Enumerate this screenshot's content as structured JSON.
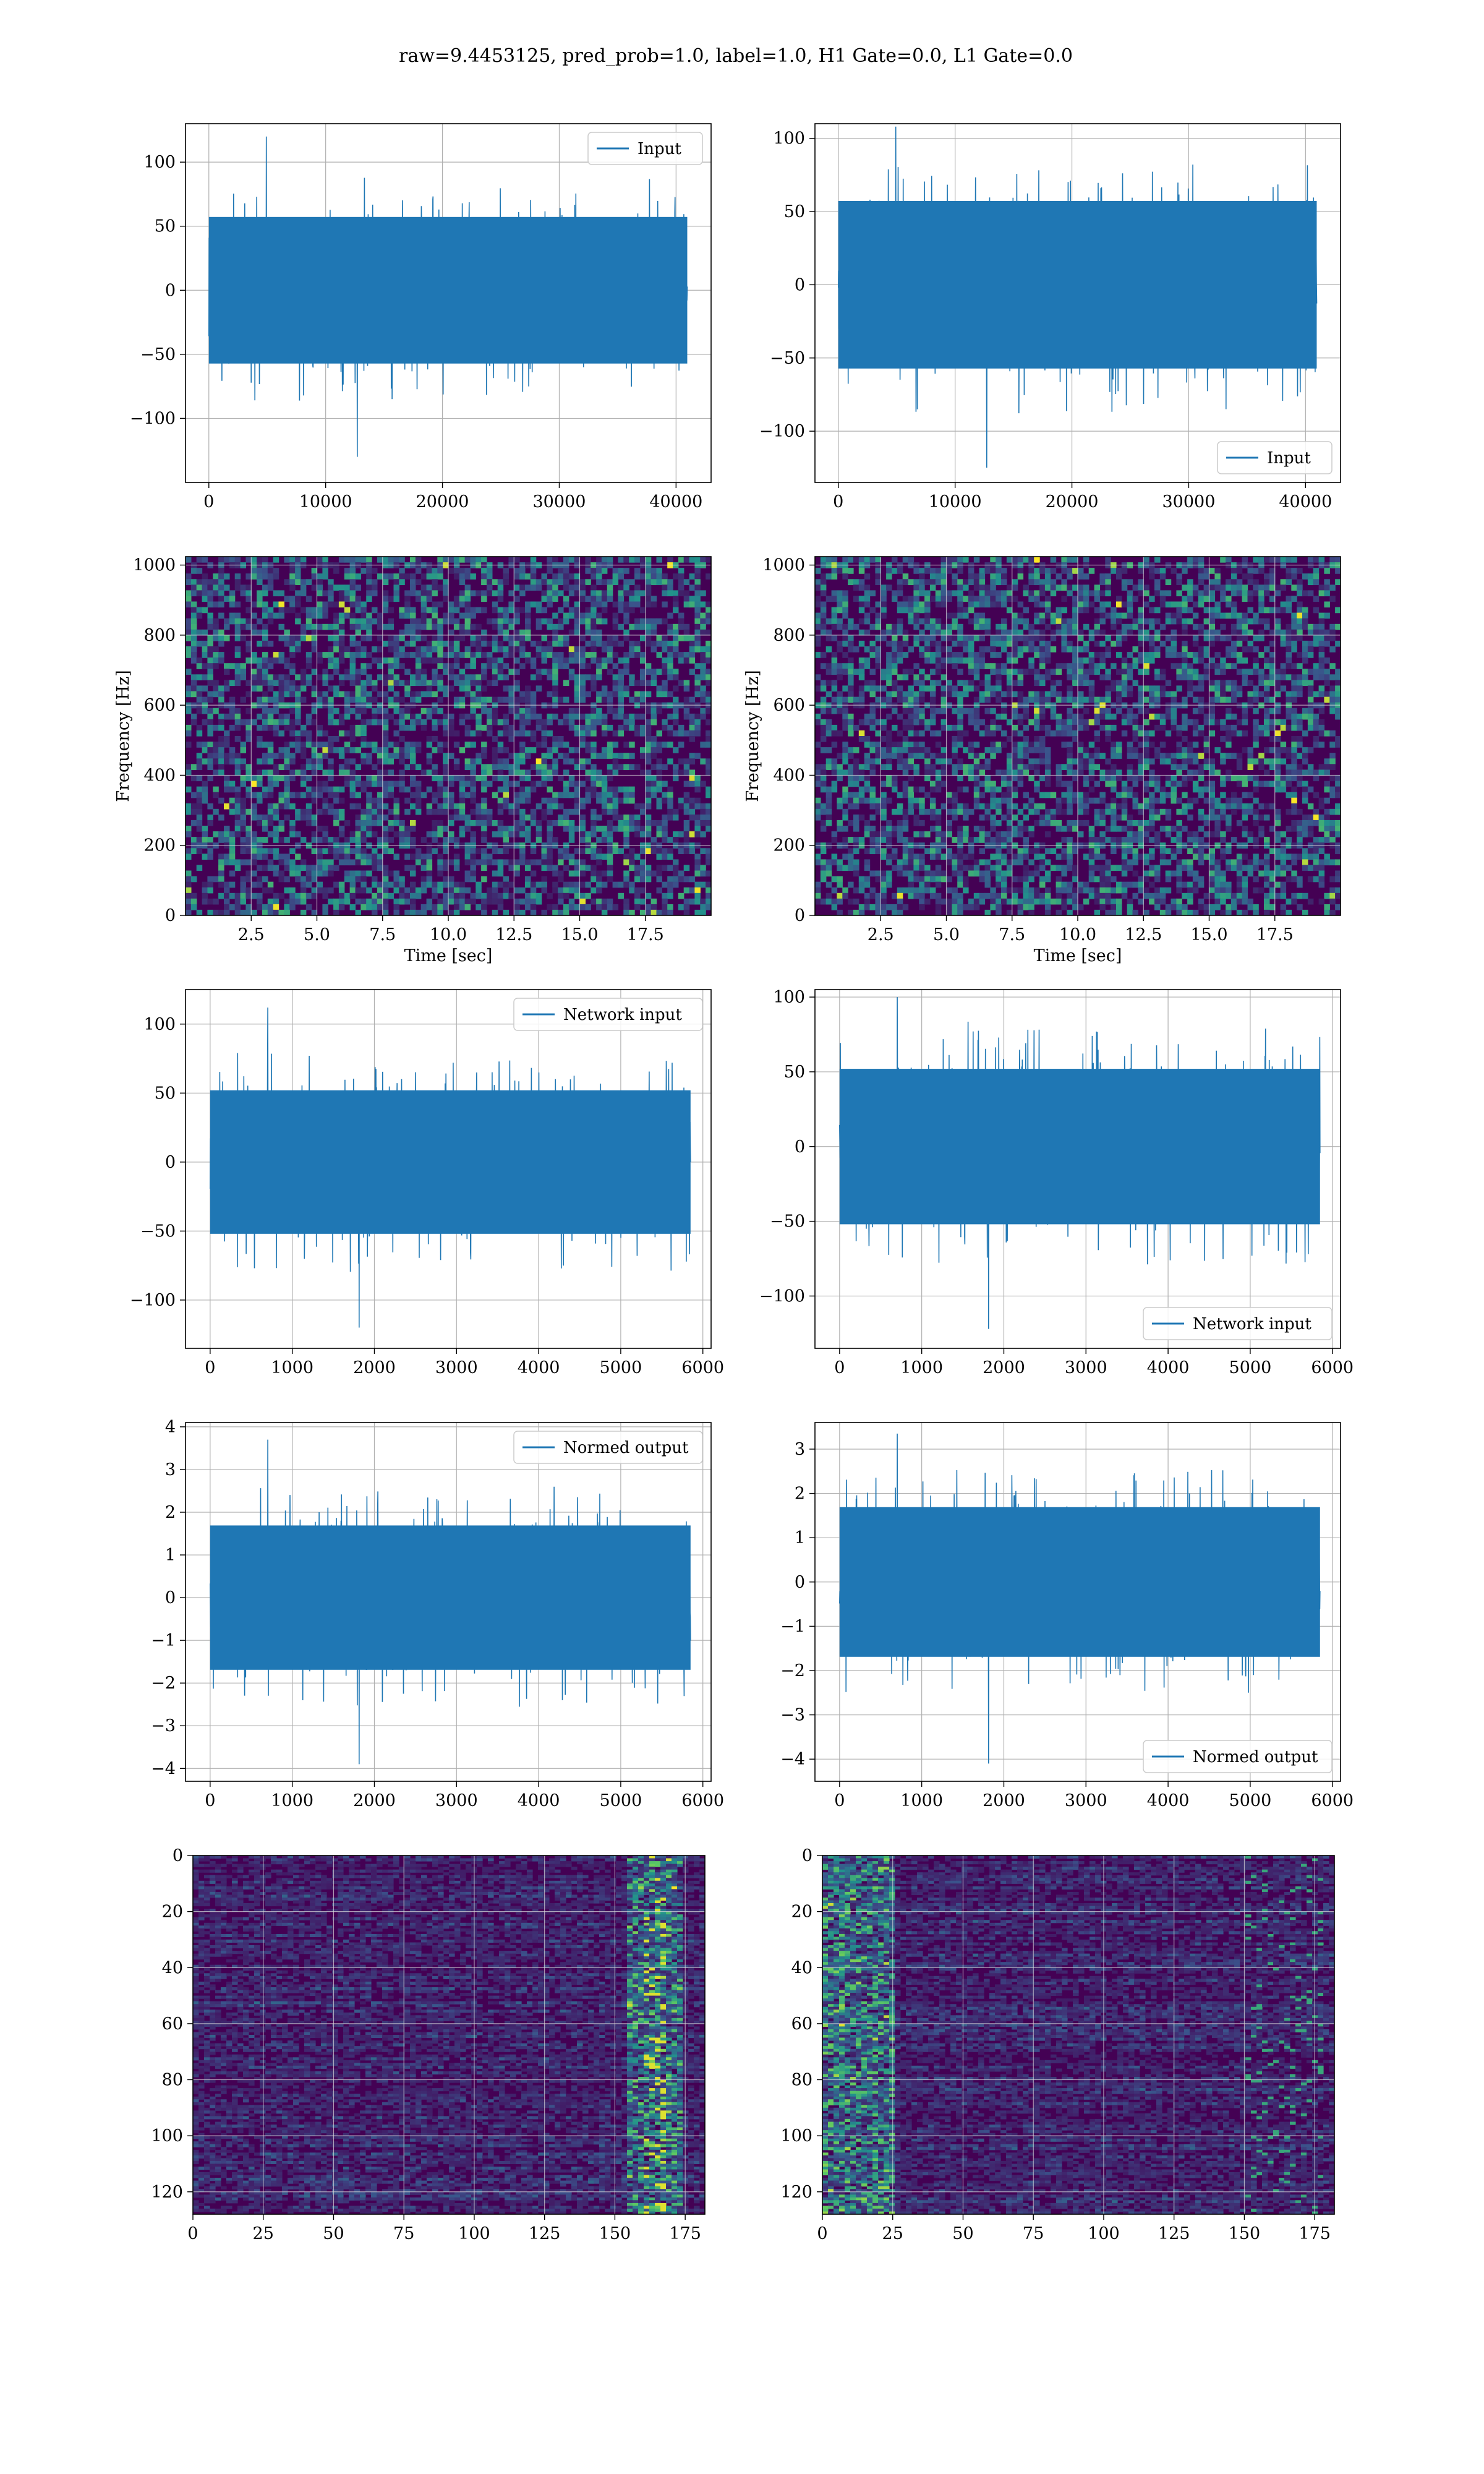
{
  "title": "raw=9.4453125, pred_prob=1.0, label=1.0, H1 Gate=0.0, L1 Gate=0.0",
  "colors": {
    "line": "#1f77b4",
    "grid": "#b0b0b0",
    "viridis_low": "#440154",
    "viridis_mid": "#21918c",
    "viridis_high": "#fde725"
  },
  "chart_data": [
    {
      "id": "h1-input",
      "type": "line",
      "series_name": "Input",
      "xlim": [
        -2000,
        43000
      ],
      "ylim": [
        -150,
        130
      ],
      "xticks": [
        0,
        10000,
        20000,
        30000,
        40000
      ],
      "yticks": [
        -100,
        -50,
        0,
        50,
        100
      ],
      "x_end": 40960,
      "amplitude": 22,
      "peak_range": [
        -130,
        120
      ],
      "grid": true,
      "legend": "upper right",
      "xlabel": "",
      "ylabel": ""
    },
    {
      "id": "l1-input",
      "type": "line",
      "series_name": "Input",
      "xlim": [
        -2000,
        43000
      ],
      "ylim": [
        -135,
        110
      ],
      "xticks": [
        0,
        10000,
        20000,
        30000,
        40000
      ],
      "yticks": [
        -100,
        -50,
        0,
        50,
        100
      ],
      "x_end": 40960,
      "amplitude": 22,
      "peak_range": [
        -125,
        108
      ],
      "grid": true,
      "legend": "lower right",
      "xlabel": "",
      "ylabel": ""
    },
    {
      "id": "h1-spectrogram",
      "type": "heatmap",
      "xlim": [
        0,
        20
      ],
      "ylim": [
        0,
        1024
      ],
      "xticks": [
        2.5,
        5.0,
        7.5,
        10.0,
        12.5,
        15.0,
        17.5
      ],
      "yticks": [
        0,
        200,
        400,
        600,
        800,
        1000
      ],
      "grid": true,
      "xlabel": "Time [sec]",
      "ylabel": "Frequency [Hz]"
    },
    {
      "id": "l1-spectrogram",
      "type": "heatmap",
      "xlim": [
        0,
        20
      ],
      "ylim": [
        0,
        1024
      ],
      "xticks": [
        2.5,
        5.0,
        7.5,
        10.0,
        12.5,
        15.0,
        17.5
      ],
      "yticks": [
        0,
        200,
        400,
        600,
        800,
        1000
      ],
      "grid": true,
      "xlabel": "Time [sec]",
      "ylabel": "Frequency [Hz]"
    },
    {
      "id": "h1-network-input",
      "type": "line",
      "series_name": "Network input",
      "xlim": [
        -300,
        6100
      ],
      "ylim": [
        -135,
        125
      ],
      "xticks": [
        0,
        1000,
        2000,
        3000,
        4000,
        5000,
        6000
      ],
      "yticks": [
        -100,
        -50,
        0,
        50,
        100
      ],
      "x_end": 5850,
      "amplitude": 20,
      "peak_range": [
        -120,
        112
      ],
      "grid": true,
      "legend": "upper right",
      "xlabel": "",
      "ylabel": ""
    },
    {
      "id": "l1-network-input",
      "type": "line",
      "series_name": "Network input",
      "xlim": [
        -300,
        6100
      ],
      "ylim": [
        -135,
        105
      ],
      "xticks": [
        0,
        1000,
        2000,
        3000,
        4000,
        5000,
        6000
      ],
      "yticks": [
        -100,
        -50,
        0,
        50,
        100
      ],
      "x_end": 5850,
      "amplitude": 20,
      "peak_range": [
        -122,
        100
      ],
      "grid": true,
      "legend": "lower right",
      "xlabel": "",
      "ylabel": ""
    },
    {
      "id": "h1-normed-output",
      "type": "line",
      "series_name": "Normed output",
      "xlim": [
        -300,
        6100
      ],
      "ylim": [
        -4.3,
        4.1
      ],
      "xticks": [
        0,
        1000,
        2000,
        3000,
        4000,
        5000,
        6000
      ],
      "yticks": [
        -4,
        -3,
        -2,
        -1,
        0,
        1,
        2,
        3,
        4
      ],
      "x_end": 5850,
      "amplitude": 0.65,
      "peak_range": [
        -3.9,
        3.7
      ],
      "grid": true,
      "legend": "upper right",
      "xlabel": "",
      "ylabel": ""
    },
    {
      "id": "l1-normed-output",
      "type": "line",
      "series_name": "Normed output",
      "xlim": [
        -300,
        6100
      ],
      "ylim": [
        -4.5,
        3.6
      ],
      "xticks": [
        0,
        1000,
        2000,
        3000,
        4000,
        5000,
        6000
      ],
      "yticks": [
        -4,
        -3,
        -2,
        -1,
        0,
        1,
        2,
        3
      ],
      "x_end": 5850,
      "amplitude": 0.65,
      "peak_range": [
        -4.1,
        3.35
      ],
      "grid": true,
      "legend": "lower right",
      "xlabel": "",
      "ylabel": ""
    },
    {
      "id": "h1-feature-map",
      "type": "heatmap",
      "xlim": [
        0,
        182
      ],
      "ylim": [
        128,
        0
      ],
      "xticks": [
        0,
        25,
        50,
        75,
        100,
        125,
        150,
        175
      ],
      "yticks": [
        0,
        20,
        40,
        60,
        80,
        100,
        120
      ],
      "grid": true,
      "xlabel": "",
      "ylabel": "",
      "bright_band_x": [
        155,
        175
      ]
    },
    {
      "id": "l1-feature-map",
      "type": "heatmap",
      "xlim": [
        0,
        182
      ],
      "ylim": [
        128,
        0
      ],
      "xticks": [
        0,
        25,
        50,
        75,
        100,
        125,
        150,
        175
      ],
      "yticks": [
        0,
        20,
        40,
        60,
        80,
        100,
        120
      ],
      "grid": true,
      "xlabel": "",
      "ylabel": "",
      "bright_band_x": [
        0,
        25
      ]
    }
  ]
}
